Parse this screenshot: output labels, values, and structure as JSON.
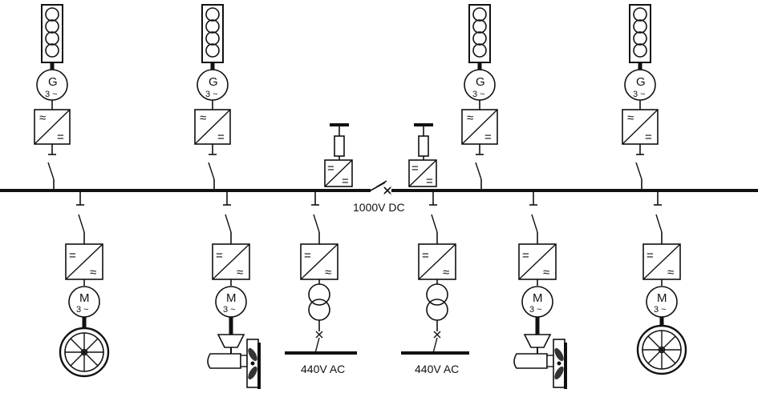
{
  "labels": {
    "dc_bus": "1000V DC",
    "ac_bus": "440V AC",
    "generator_letter": "G",
    "generator_phase": "3 ~",
    "motor_letter": "M",
    "motor_phase": "3 ~",
    "ac_glyph": "≈",
    "dc_glyph": "="
  },
  "components": {
    "generators": 4,
    "propulsion_wheels": 2,
    "thrusters": 2,
    "ac_transformers": 2,
    "battery_converters": 2
  }
}
